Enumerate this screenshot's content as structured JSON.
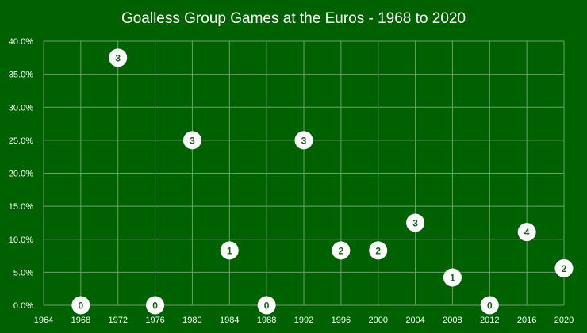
{
  "chart_data": {
    "type": "scatter",
    "title": "Goalless Group Games at the Euros - 1968 to 2020",
    "xlabel": "",
    "ylabel": "",
    "xlim": [
      1964,
      2020
    ],
    "ylim": [
      0,
      40
    ],
    "x_ticks": [
      "1964",
      "1968",
      "1972",
      "1976",
      "1980",
      "1984",
      "1988",
      "1992",
      "1996",
      "2000",
      "2004",
      "2008",
      "2012",
      "2016",
      "2020"
    ],
    "y_ticks": [
      "0.0%",
      "5.0%",
      "10.0%",
      "15.0%",
      "20.0%",
      "25.0%",
      "30.0%",
      "35.0%",
      "40.0%"
    ],
    "grid": true,
    "legend": "none",
    "colors": {
      "background": "#006100",
      "grid": "#6f9f6f",
      "marker": "#ffffff",
      "label": "#1a5c1a",
      "text": "#ffffff"
    },
    "points": [
      {
        "x": 1968,
        "y": 0.0,
        "label": "0"
      },
      {
        "x": 1972,
        "y": 37.5,
        "label": "3"
      },
      {
        "x": 1976,
        "y": 0.0,
        "label": "0"
      },
      {
        "x": 1980,
        "y": 25.0,
        "label": "3"
      },
      {
        "x": 1984,
        "y": 8.3,
        "label": "1"
      },
      {
        "x": 1988,
        "y": 0.0,
        "label": "0"
      },
      {
        "x": 1992,
        "y": 25.0,
        "label": "3"
      },
      {
        "x": 1996,
        "y": 8.3,
        "label": "2"
      },
      {
        "x": 2000,
        "y": 8.3,
        "label": "2"
      },
      {
        "x": 2004,
        "y": 12.5,
        "label": "3"
      },
      {
        "x": 2008,
        "y": 4.2,
        "label": "1"
      },
      {
        "x": 2012,
        "y": 0.0,
        "label": "0"
      },
      {
        "x": 2016,
        "y": 11.1,
        "label": "4"
      },
      {
        "x": 2020,
        "y": 5.6,
        "label": "2"
      }
    ]
  }
}
